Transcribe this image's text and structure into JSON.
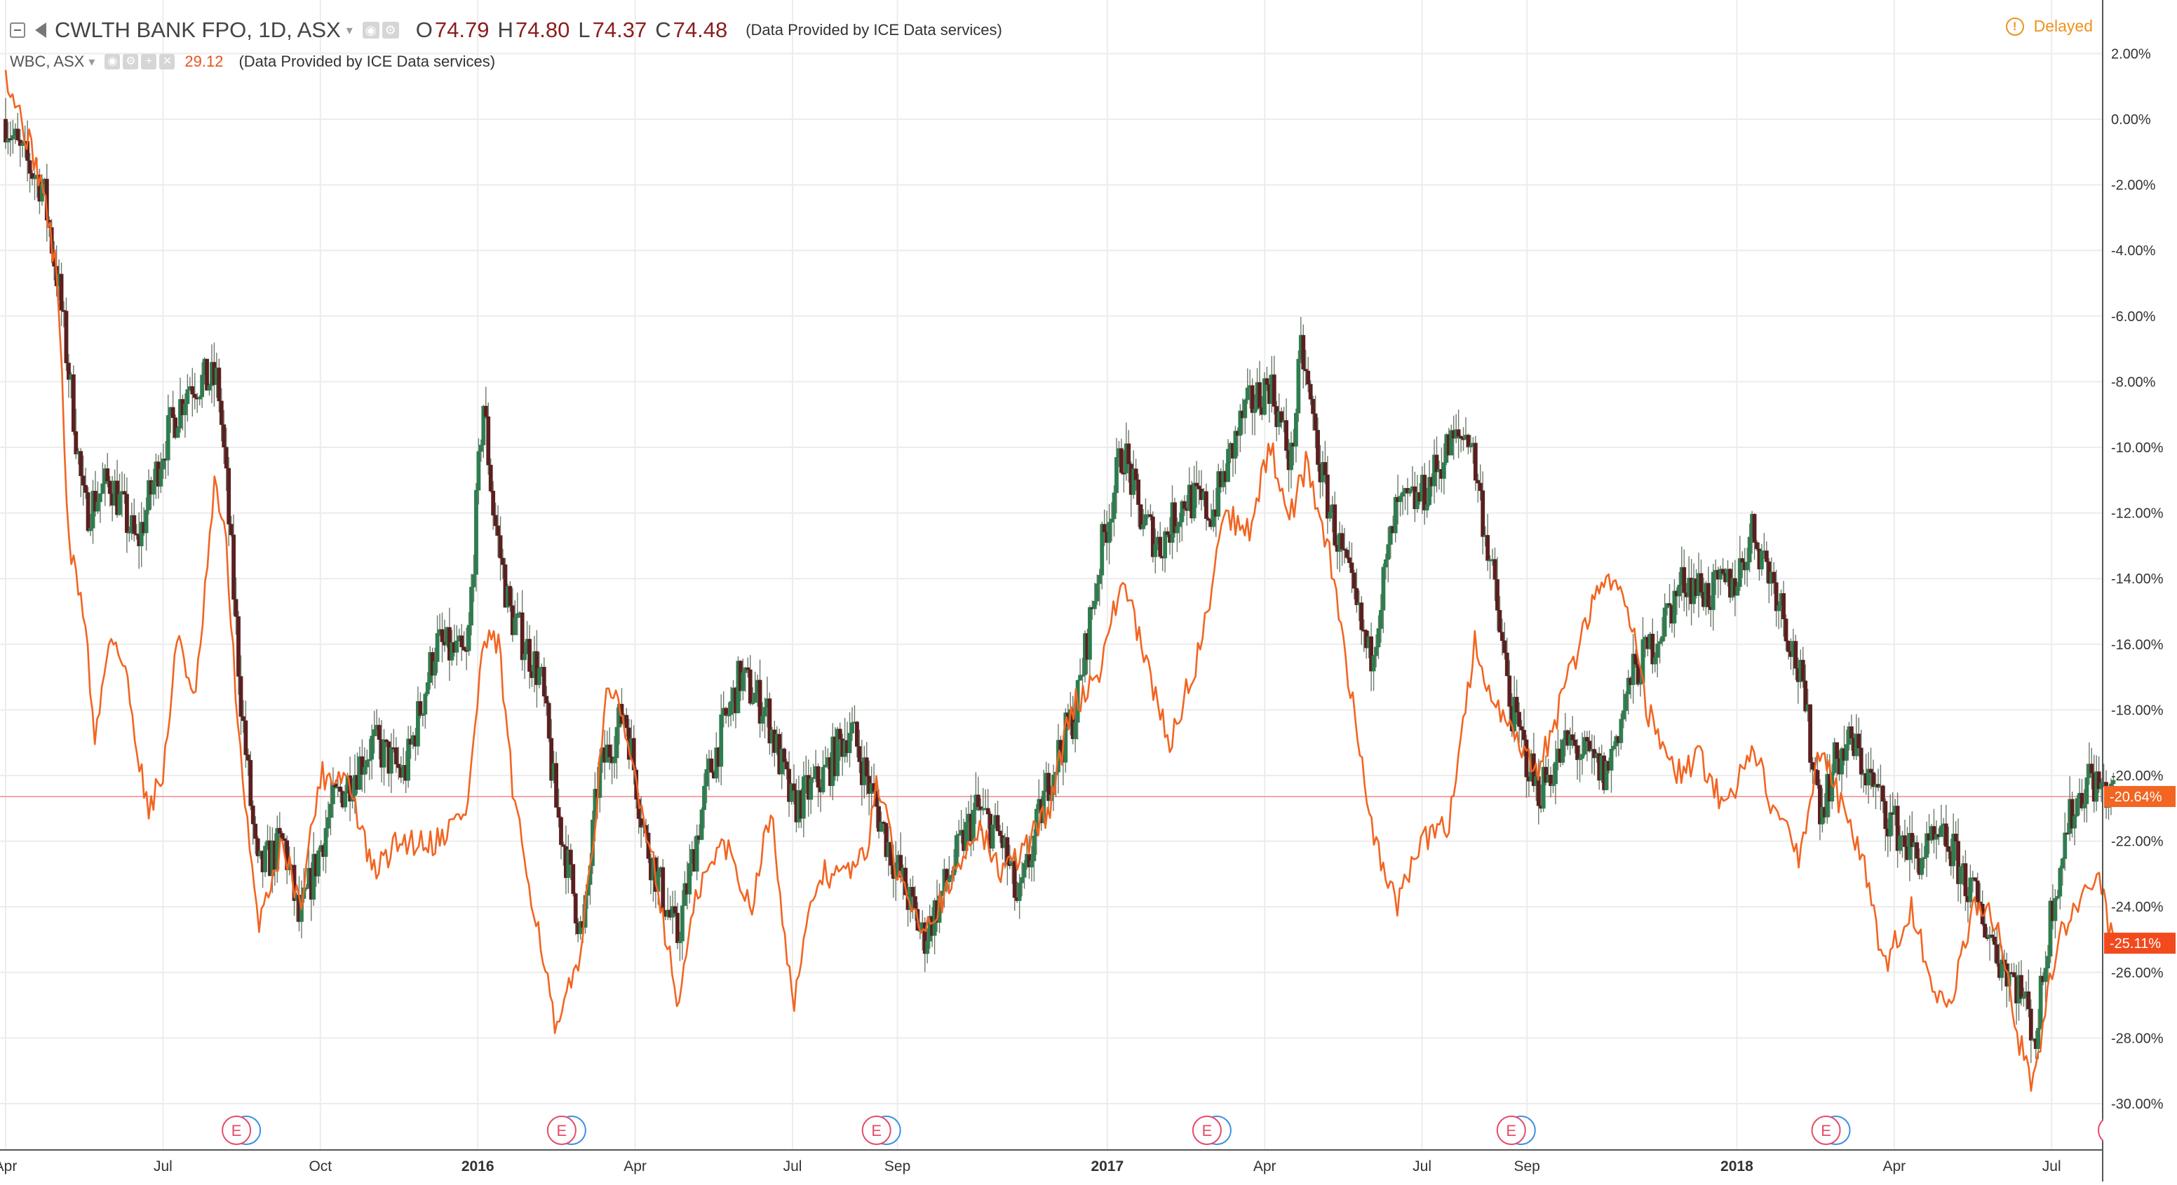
{
  "legend": {
    "symbol": "CWLTH BANK FPO, 1D, ASX",
    "open_label": "O",
    "open": "74.79",
    "high_label": "H",
    "high": "74.80",
    "low_label": "L",
    "low": "74.37",
    "close_label": "C",
    "close": "74.48",
    "data_credit": "(Data Provided by ICE Data services)",
    "compare_symbol": "WBC, ASX",
    "compare_value": "29.12",
    "compare_data_credit": "(Data Provided by ICE Data services)"
  },
  "status": {
    "label": "Delayed",
    "icon": "exclamation-circle-icon"
  },
  "icons": {
    "collapse": "collapse-icon",
    "flag": "flag-icon",
    "dropdown": "chevron-down-icon",
    "visibility": "eye-icon",
    "settings": "gear-icon",
    "plus": "plus-icon",
    "close": "close-icon"
  },
  "colors": {
    "up_candle": "#2e7d4f",
    "down_candle": "#5b1f1f",
    "wick": "#6b7a6b",
    "compare_line": "#f26522",
    "zero_line": "#f4a6a6",
    "grid": "#ececec",
    "earnings_marker": "#e54b6a",
    "dividend_marker": "#3c8fe3",
    "status": "#f0921e"
  },
  "markers": [
    {
      "label": "E"
    },
    {
      "label": "E"
    },
    {
      "label": "E"
    },
    {
      "label": "E"
    },
    {
      "label": "E"
    },
    {
      "label": "E"
    },
    {
      "label": "E"
    }
  ],
  "chart_data": {
    "type": "line",
    "title": "CWLTH BANK FPO, 1D, ASX",
    "percent_scale": true,
    "grid": true,
    "ylim": [
      -31.5,
      3.2
    ],
    "y_ticks": [
      "2.00%",
      "0.00%",
      "-2.00%",
      "-4.00%",
      "-6.00%",
      "-8.00%",
      "-10.00%",
      "-12.00%",
      "-14.00%",
      "-16.00%",
      "-18.00%",
      "-20.00%",
      "-22.00%",
      "-24.00%",
      "-26.00%",
      "-28.00%",
      "-30.00%"
    ],
    "x_ticks": [
      "Apr",
      "Jul",
      "Oct",
      "2016",
      "Apr",
      "Jul",
      "Sep",
      "2017",
      "Apr",
      "Jul",
      "Sep",
      "2018",
      "Apr",
      "Jul"
    ],
    "bold_x_ticks": [
      "2016",
      "2017",
      "2018"
    ],
    "x_tick_months": [
      0,
      3,
      6,
      9,
      12,
      15,
      17,
      21,
      24,
      27,
      29,
      33,
      36,
      39
    ],
    "x_range_months": [
      0,
      40.3
    ],
    "candle_label_main": "CWLTH BANK FPO",
    "last_values": [
      {
        "label": "-20.64%",
        "value": -20.64,
        "color": "#f26522"
      },
      {
        "label": "-25.11%",
        "value": -25.11,
        "color": "#f24a1d"
      }
    ],
    "anchors": {
      "main": [
        [
          0,
          0
        ],
        [
          0.25,
          -1
        ],
        [
          0.7,
          -2
        ],
        [
          1,
          -5
        ],
        [
          1.3,
          -9
        ],
        [
          1.5,
          -12
        ],
        [
          2,
          -11
        ],
        [
          2.5,
          -13
        ],
        [
          3,
          -10
        ],
        [
          3.5,
          -8
        ],
        [
          4.05,
          -8
        ],
        [
          4.2,
          -11
        ],
        [
          4.5,
          -18
        ],
        [
          4.8,
          -23
        ],
        [
          5.3,
          -22
        ],
        [
          5.6,
          -24.5
        ],
        [
          6.2,
          -21
        ],
        [
          7,
          -19
        ],
        [
          7.6,
          -20
        ],
        [
          8.2,
          -16
        ],
        [
          8.8,
          -16.5
        ],
        [
          9.1,
          -8.5
        ],
        [
          9.3,
          -12
        ],
        [
          9.6,
          -15
        ],
        [
          10.2,
          -17
        ],
        [
          10.5,
          -21
        ],
        [
          11,
          -25
        ],
        [
          11.3,
          -20
        ],
        [
          11.8,
          -18
        ],
        [
          12.2,
          -22
        ],
        [
          12.8,
          -25
        ],
        [
          13.4,
          -20
        ],
        [
          14,
          -17
        ],
        [
          14.5,
          -18
        ],
        [
          15,
          -21
        ],
        [
          15.6,
          -20
        ],
        [
          16.1,
          -18.5
        ],
        [
          16.4,
          -20
        ],
        [
          16.8,
          -22
        ],
        [
          17.5,
          -25
        ],
        [
          18,
          -23
        ],
        [
          18.5,
          -21
        ],
        [
          19,
          -22
        ],
        [
          19.3,
          -24
        ],
        [
          19.9,
          -20
        ],
        [
          20.4,
          -18
        ],
        [
          20.9,
          -13
        ],
        [
          21.3,
          -10
        ],
        [
          21.6,
          -12
        ],
        [
          22,
          -13
        ],
        [
          22.5,
          -11.5
        ],
        [
          23,
          -12
        ],
        [
          23.6,
          -9
        ],
        [
          24.1,
          -8
        ],
        [
          24.5,
          -10.5
        ],
        [
          24.7,
          -7
        ],
        [
          25.1,
          -11
        ],
        [
          25.5,
          -13.5
        ],
        [
          26,
          -16.5
        ],
        [
          26.5,
          -12
        ],
        [
          27,
          -11.5
        ],
        [
          27.5,
          -10
        ],
        [
          27.9,
          -9.5
        ],
        [
          28.3,
          -13.5
        ],
        [
          28.7,
          -18
        ],
        [
          29.2,
          -20.5
        ],
        [
          29.8,
          -19
        ],
        [
          30.5,
          -20
        ],
        [
          31,
          -17
        ],
        [
          31.4,
          -16
        ],
        [
          32,
          -14
        ],
        [
          32.5,
          -14.5
        ],
        [
          33,
          -14
        ],
        [
          33.3,
          -12.5
        ],
        [
          33.8,
          -14.5
        ],
        [
          34.2,
          -17
        ],
        [
          34.6,
          -21
        ],
        [
          34.9,
          -19.5
        ],
        [
          35.2,
          -19
        ],
        [
          35.8,
          -21
        ],
        [
          36.4,
          -22.5
        ],
        [
          37,
          -22
        ],
        [
          37.6,
          -24
        ],
        [
          38,
          -25.5
        ],
        [
          38.4,
          -26.5
        ],
        [
          38.7,
          -28
        ],
        [
          39,
          -24
        ],
        [
          39.3,
          -21.5
        ],
        [
          39.7,
          -20
        ],
        [
          40.1,
          -20.64
        ]
      ],
      "compare": [
        [
          0,
          1.5
        ],
        [
          0.3,
          0
        ],
        [
          0.7,
          -2
        ],
        [
          1,
          -5
        ],
        [
          1.2,
          -13
        ],
        [
          1.5,
          -15
        ],
        [
          1.7,
          -19
        ],
        [
          2,
          -15.5
        ],
        [
          2.3,
          -17
        ],
        [
          2.7,
          -21
        ],
        [
          3,
          -20
        ],
        [
          3.3,
          -15.5
        ],
        [
          3.6,
          -18
        ],
        [
          4,
          -11
        ],
        [
          4.2,
          -13
        ],
        [
          4.5,
          -20
        ],
        [
          4.8,
          -24.5
        ],
        [
          5.3,
          -22
        ],
        [
          5.6,
          -24
        ],
        [
          6,
          -20
        ],
        [
          6.5,
          -20
        ],
        [
          7,
          -23
        ],
        [
          7.5,
          -22
        ],
        [
          8.2,
          -22
        ],
        [
          8.8,
          -21
        ],
        [
          9.1,
          -16
        ],
        [
          9.4,
          -16
        ],
        [
          9.7,
          -21
        ],
        [
          10.2,
          -25
        ],
        [
          10.5,
          -28
        ],
        [
          11,
          -25
        ],
        [
          11.5,
          -17
        ],
        [
          12,
          -20
        ],
        [
          12.4,
          -23
        ],
        [
          12.8,
          -27
        ],
        [
          13.2,
          -23.5
        ],
        [
          13.7,
          -22
        ],
        [
          14.2,
          -24
        ],
        [
          14.6,
          -21
        ],
        [
          15,
          -27
        ],
        [
          15.5,
          -23
        ],
        [
          16,
          -23
        ],
        [
          16.4,
          -22.5
        ],
        [
          16.6,
          -20
        ],
        [
          17,
          -23
        ],
        [
          17.5,
          -24.5
        ],
        [
          18,
          -23.5
        ],
        [
          18.5,
          -21.5
        ],
        [
          19,
          -23
        ],
        [
          19.3,
          -22.5
        ],
        [
          19.9,
          -21
        ],
        [
          20.3,
          -18
        ],
        [
          20.8,
          -17
        ],
        [
          21.3,
          -14
        ],
        [
          21.8,
          -17
        ],
        [
          22.2,
          -19
        ],
        [
          22.8,
          -16
        ],
        [
          23.2,
          -12
        ],
        [
          23.7,
          -12.5
        ],
        [
          24.1,
          -10
        ],
        [
          24.5,
          -12
        ],
        [
          24.8,
          -10.5
        ],
        [
          25.2,
          -13
        ],
        [
          25.6,
          -17
        ],
        [
          26.1,
          -22
        ],
        [
          26.5,
          -24
        ],
        [
          27,
          -22
        ],
        [
          27.5,
          -21.5
        ],
        [
          28,
          -16
        ],
        [
          28.4,
          -18
        ],
        [
          28.8,
          -19
        ],
        [
          29.2,
          -20
        ],
        [
          29.8,
          -17
        ],
        [
          30.4,
          -14
        ],
        [
          30.9,
          -14.5
        ],
        [
          31.3,
          -18
        ],
        [
          31.8,
          -20
        ],
        [
          32.3,
          -19.5
        ],
        [
          32.8,
          -21
        ],
        [
          33.3,
          -19
        ],
        [
          33.7,
          -21
        ],
        [
          34.2,
          -22.5
        ],
        [
          34.6,
          -19
        ],
        [
          35,
          -21
        ],
        [
          35.4,
          -22.5
        ],
        [
          35.8,
          -26
        ],
        [
          36.3,
          -24
        ],
        [
          36.7,
          -26
        ],
        [
          37,
          -27.5
        ],
        [
          37.5,
          -24
        ],
        [
          38,
          -24.5
        ],
        [
          38.3,
          -27.5
        ],
        [
          38.6,
          -29.5
        ],
        [
          38.8,
          -28
        ],
        [
          39.1,
          -25
        ],
        [
          39.5,
          -24
        ],
        [
          39.9,
          -23
        ],
        [
          40.15,
          -25.11
        ]
      ]
    }
  }
}
